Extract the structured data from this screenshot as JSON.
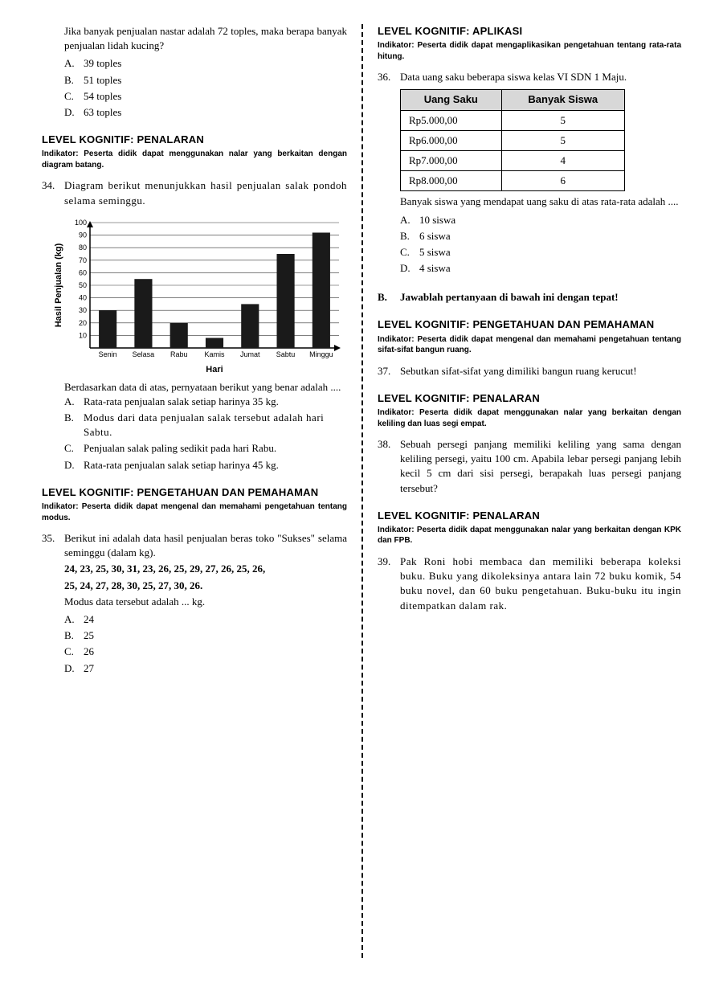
{
  "left": {
    "intro_q": "Jika banyak penjualan nastar adalah 72 toples, maka berapa banyak penjualan lidah kucing?",
    "intro_opts": [
      "39 toples",
      "51 toples",
      "54 toples",
      "63 toples"
    ],
    "level1": "LEVEL KOGNITIF: PENALARAN",
    "ind1": "Indikator: Peserta didik dapat menggunakan nalar yang berkaitan dengan diagram batang.",
    "q34_num": "34.",
    "q34_text": "Diagram berikut menunjukkan hasil penjualan salak pondoh selama seminggu.",
    "chart": {
      "type": "bar",
      "ylabel": "Hasil Penjualan (kg)",
      "xlabel": "Hari",
      "categories": [
        "Senin",
        "Selasa",
        "Rabu",
        "Kamis",
        "Jumat",
        "Sabtu",
        "Minggu"
      ],
      "values": [
        30,
        55,
        20,
        8,
        35,
        75,
        92
      ],
      "ylim": [
        0,
        100
      ],
      "ytick_step": 10,
      "bar_color": "#1a1a1a",
      "grid_color": "#333",
      "axis_color": "#000",
      "bg_color": "#fff",
      "bar_width": 0.5,
      "font_size": 9,
      "label_fontsize": 11
    },
    "q34_post": "Berdasarkan data di atas, pernyataan berikut yang benar adalah ....",
    "q34_opts": [
      "Rata-rata penjualan salak setiap harinya 35 kg.",
      "Modus dari data penjualan salak tersebut adalah hari Sabtu.",
      "Penjualan salak paling sedikit pada hari Rabu.",
      "Rata-rata penjualan salak setiap harinya 45 kg."
    ],
    "level2": "LEVEL KOGNITIF: PENGETAHUAN DAN PEMAHAMAN",
    "ind2": "Indikator: Peserta didik dapat mengenal dan memahami pengetahuan tentang modus.",
    "q35_num": "35.",
    "q35_text": "Berikut ini adalah data hasil penjualan beras toko \"Sukses\" selama seminggu (dalam kg).",
    "q35_data1": "24, 23, 25, 30, 31, 23, 26, 25, 29, 27, 26, 25, 26,",
    "q35_data2": "25, 24, 27, 28, 30, 25, 27, 30, 26.",
    "q35_ask": "Modus data tersebut adalah ... kg.",
    "q35_opts": [
      "24",
      "25",
      "26",
      "27"
    ]
  },
  "right": {
    "level1": "LEVEL KOGNITIF: APLIKASI",
    "ind1": "Indikator: Peserta didik dapat mengaplikasikan pengetahuan tentang rata-rata hitung.",
    "q36_num": "36.",
    "q36_text": "Data uang saku beberapa siswa kelas VI SDN 1 Maju.",
    "table": {
      "columns": [
        "Uang Saku",
        "Banyak Siswa"
      ],
      "rows": [
        [
          "Rp5.000,00",
          "5"
        ],
        [
          "Rp6.000,00",
          "5"
        ],
        [
          "Rp7.000,00",
          "4"
        ],
        [
          "Rp8.000,00",
          "6"
        ]
      ]
    },
    "q36_post": "Banyak siswa yang mendapat uang saku di atas rata-rata adalah ....",
    "q36_opts": [
      "10 siswa",
      "6 siswa",
      "5 siswa",
      "4 siswa"
    ],
    "secB_letter": "B.",
    "secB_text": "Jawablah pertanyaan di bawah ini dengan tepat!",
    "level2": "LEVEL KOGNITIF: PENGETAHUAN DAN PEMAHAMAN",
    "ind2": "Indikator: Peserta didik dapat mengenal dan memahami pengetahuan tentang sifat-sifat bangun ruang.",
    "q37_num": "37.",
    "q37_text": "Sebutkan sifat-sifat yang dimiliki bangun ruang kerucut!",
    "level3": "LEVEL KOGNITIF: PENALARAN",
    "ind3": "Indikator: Peserta didik dapat menggunakan nalar yang berkaitan dengan keliling dan luas segi empat.",
    "q38_num": "38.",
    "q38_text": "Sebuah persegi panjang memiliki keliling yang sama dengan keliling persegi, yaitu 100 cm. Apabila lebar persegi panjang lebih kecil 5 cm dari sisi persegi, berapakah luas persegi panjang tersebut?",
    "level4": "LEVEL KOGNITIF: PENALARAN",
    "ind4": "Indikator: Peserta didik dapat menggunakan nalar yang berkaitan dengan KPK dan FPB.",
    "q39_num": "39.",
    "q39_text": "Pak Roni hobi membaca dan memiliki beberapa koleksi buku. Buku yang dikoleksinya antara lain 72 buku komik, 54 buku novel, dan 60 buku pengetahuan. Buku-buku itu ingin ditempatkan dalam rak."
  },
  "letters": [
    "A.",
    "B.",
    "C.",
    "D."
  ]
}
